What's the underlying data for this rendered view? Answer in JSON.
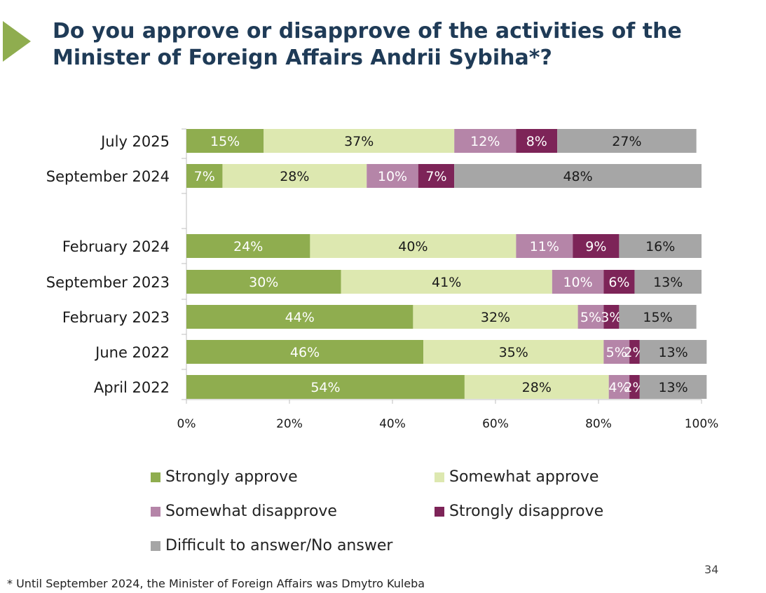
{
  "title": "Do you approve or disapprove of the activities of the Minister of Foreign Affairs Andrii Sybiha*?",
  "page_number": "34",
  "footnote": "* Until September 2024, the Minister of Foreign Affairs was Dmytro Kuleba",
  "colors": {
    "strongly_approve": "#8fad4f",
    "somewhat_approve": "#dde8b0",
    "somewhat_disapprove": "#b585a8",
    "strongly_disapprove": "#7d2458",
    "no_answer": "#a6a6a6",
    "title": "#1f3b57",
    "logo": "#8fad4f"
  },
  "chart_data": {
    "type": "bar",
    "orientation": "horizontal",
    "stacked": true,
    "title": "Do you approve or disapprove of the activities of the Minister of Foreign Affairs Andrii Sybiha*?",
    "categories": [
      "July 2025",
      "September 2024",
      "February 2024",
      "September 2023",
      "February 2023",
      "June 2022",
      "April 2022"
    ],
    "x_ticks": [
      "0%",
      "20%",
      "40%",
      "60%",
      "80%",
      "100%"
    ],
    "xlim": [
      0,
      100
    ],
    "series": [
      {
        "name": "Strongly approve",
        "color_key": "strongly_approve",
        "label_color": "#ffffff",
        "values": [
          15,
          7,
          24,
          30,
          44,
          46,
          54
        ],
        "labels": [
          "15%",
          "7%",
          "24%",
          "30%",
          "44%",
          "46%",
          "54%"
        ]
      },
      {
        "name": "Somewhat approve",
        "color_key": "somewhat_approve",
        "label_color": "#1a1a1a",
        "values": [
          37,
          28,
          40,
          41,
          32,
          35,
          28
        ],
        "labels": [
          "37%",
          "28%",
          "40%",
          "41%",
          "32%",
          "35%",
          "28%"
        ]
      },
      {
        "name": "Somewhat disapprove",
        "color_key": "somewhat_disapprove",
        "label_color": "#ffffff",
        "values": [
          12,
          10,
          11,
          10,
          5,
          5,
          4
        ],
        "labels": [
          "12%",
          "10%",
          "11%",
          "10%",
          "5%",
          "5%",
          "4%"
        ]
      },
      {
        "name": "Strongly disapprove",
        "color_key": "strongly_disapprove",
        "label_color": "#ffffff",
        "values": [
          8,
          7,
          9,
          6,
          3,
          2,
          2
        ],
        "labels": [
          "8%",
          "7%",
          "9%",
          "6%",
          "3%",
          "2%",
          "2%"
        ]
      },
      {
        "name": "Difficult to answer/No answer",
        "color_key": "no_answer",
        "label_color": "#1a1a1a",
        "values": [
          27,
          48,
          16,
          13,
          15,
          13,
          13
        ],
        "labels": [
          "27%",
          "48%",
          "16%",
          "13%",
          "15%",
          "13%",
          "13%"
        ]
      }
    ],
    "legend": [
      "Strongly approve",
      "Somewhat approve",
      "Somewhat disapprove",
      "Strongly disapprove",
      "Difficult to answer/No answer"
    ],
    "legend_position": "bottom",
    "grid": false
  }
}
